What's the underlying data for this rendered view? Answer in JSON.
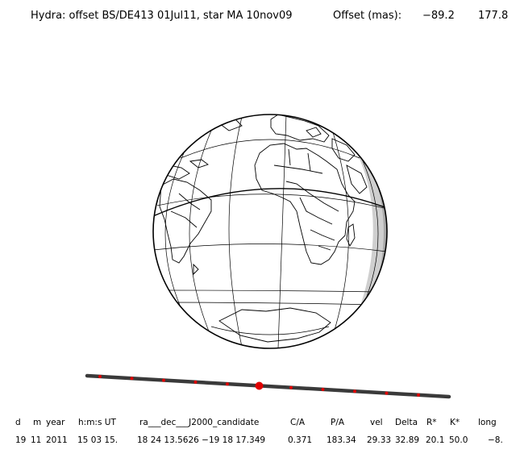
{
  "title": {
    "text": "Hydra: offset BS/DE413 01Jul11, star MA 10nov09",
    "offset_label": "Offset (mas):",
    "offset_ra": "−89.2",
    "offset_dec": "177.8"
  },
  "track": {
    "markers": 11,
    "closest_index": 5
  },
  "columns": [
    {
      "header": "d",
      "value": "19"
    },
    {
      "header": "m",
      "value": "11"
    },
    {
      "header": "year",
      "value": "2011"
    },
    {
      "header": "h:m:s UT",
      "value": "15 03 15."
    },
    {
      "header": "ra___dec___J2000_candidate",
      "value": "18 24 13.5626 −19 18  17.349"
    },
    {
      "header": "C/A",
      "value": "0.371"
    },
    {
      "header": "P/A",
      "value": "183.34"
    },
    {
      "header": "vel",
      "value": "29.33"
    },
    {
      "header": "Delta",
      "value": "32.89"
    },
    {
      "header": "R*",
      "value": "20.1"
    },
    {
      "header": "K*",
      "value": "50.0"
    },
    {
      "header": "long",
      "value": "−8."
    }
  ]
}
